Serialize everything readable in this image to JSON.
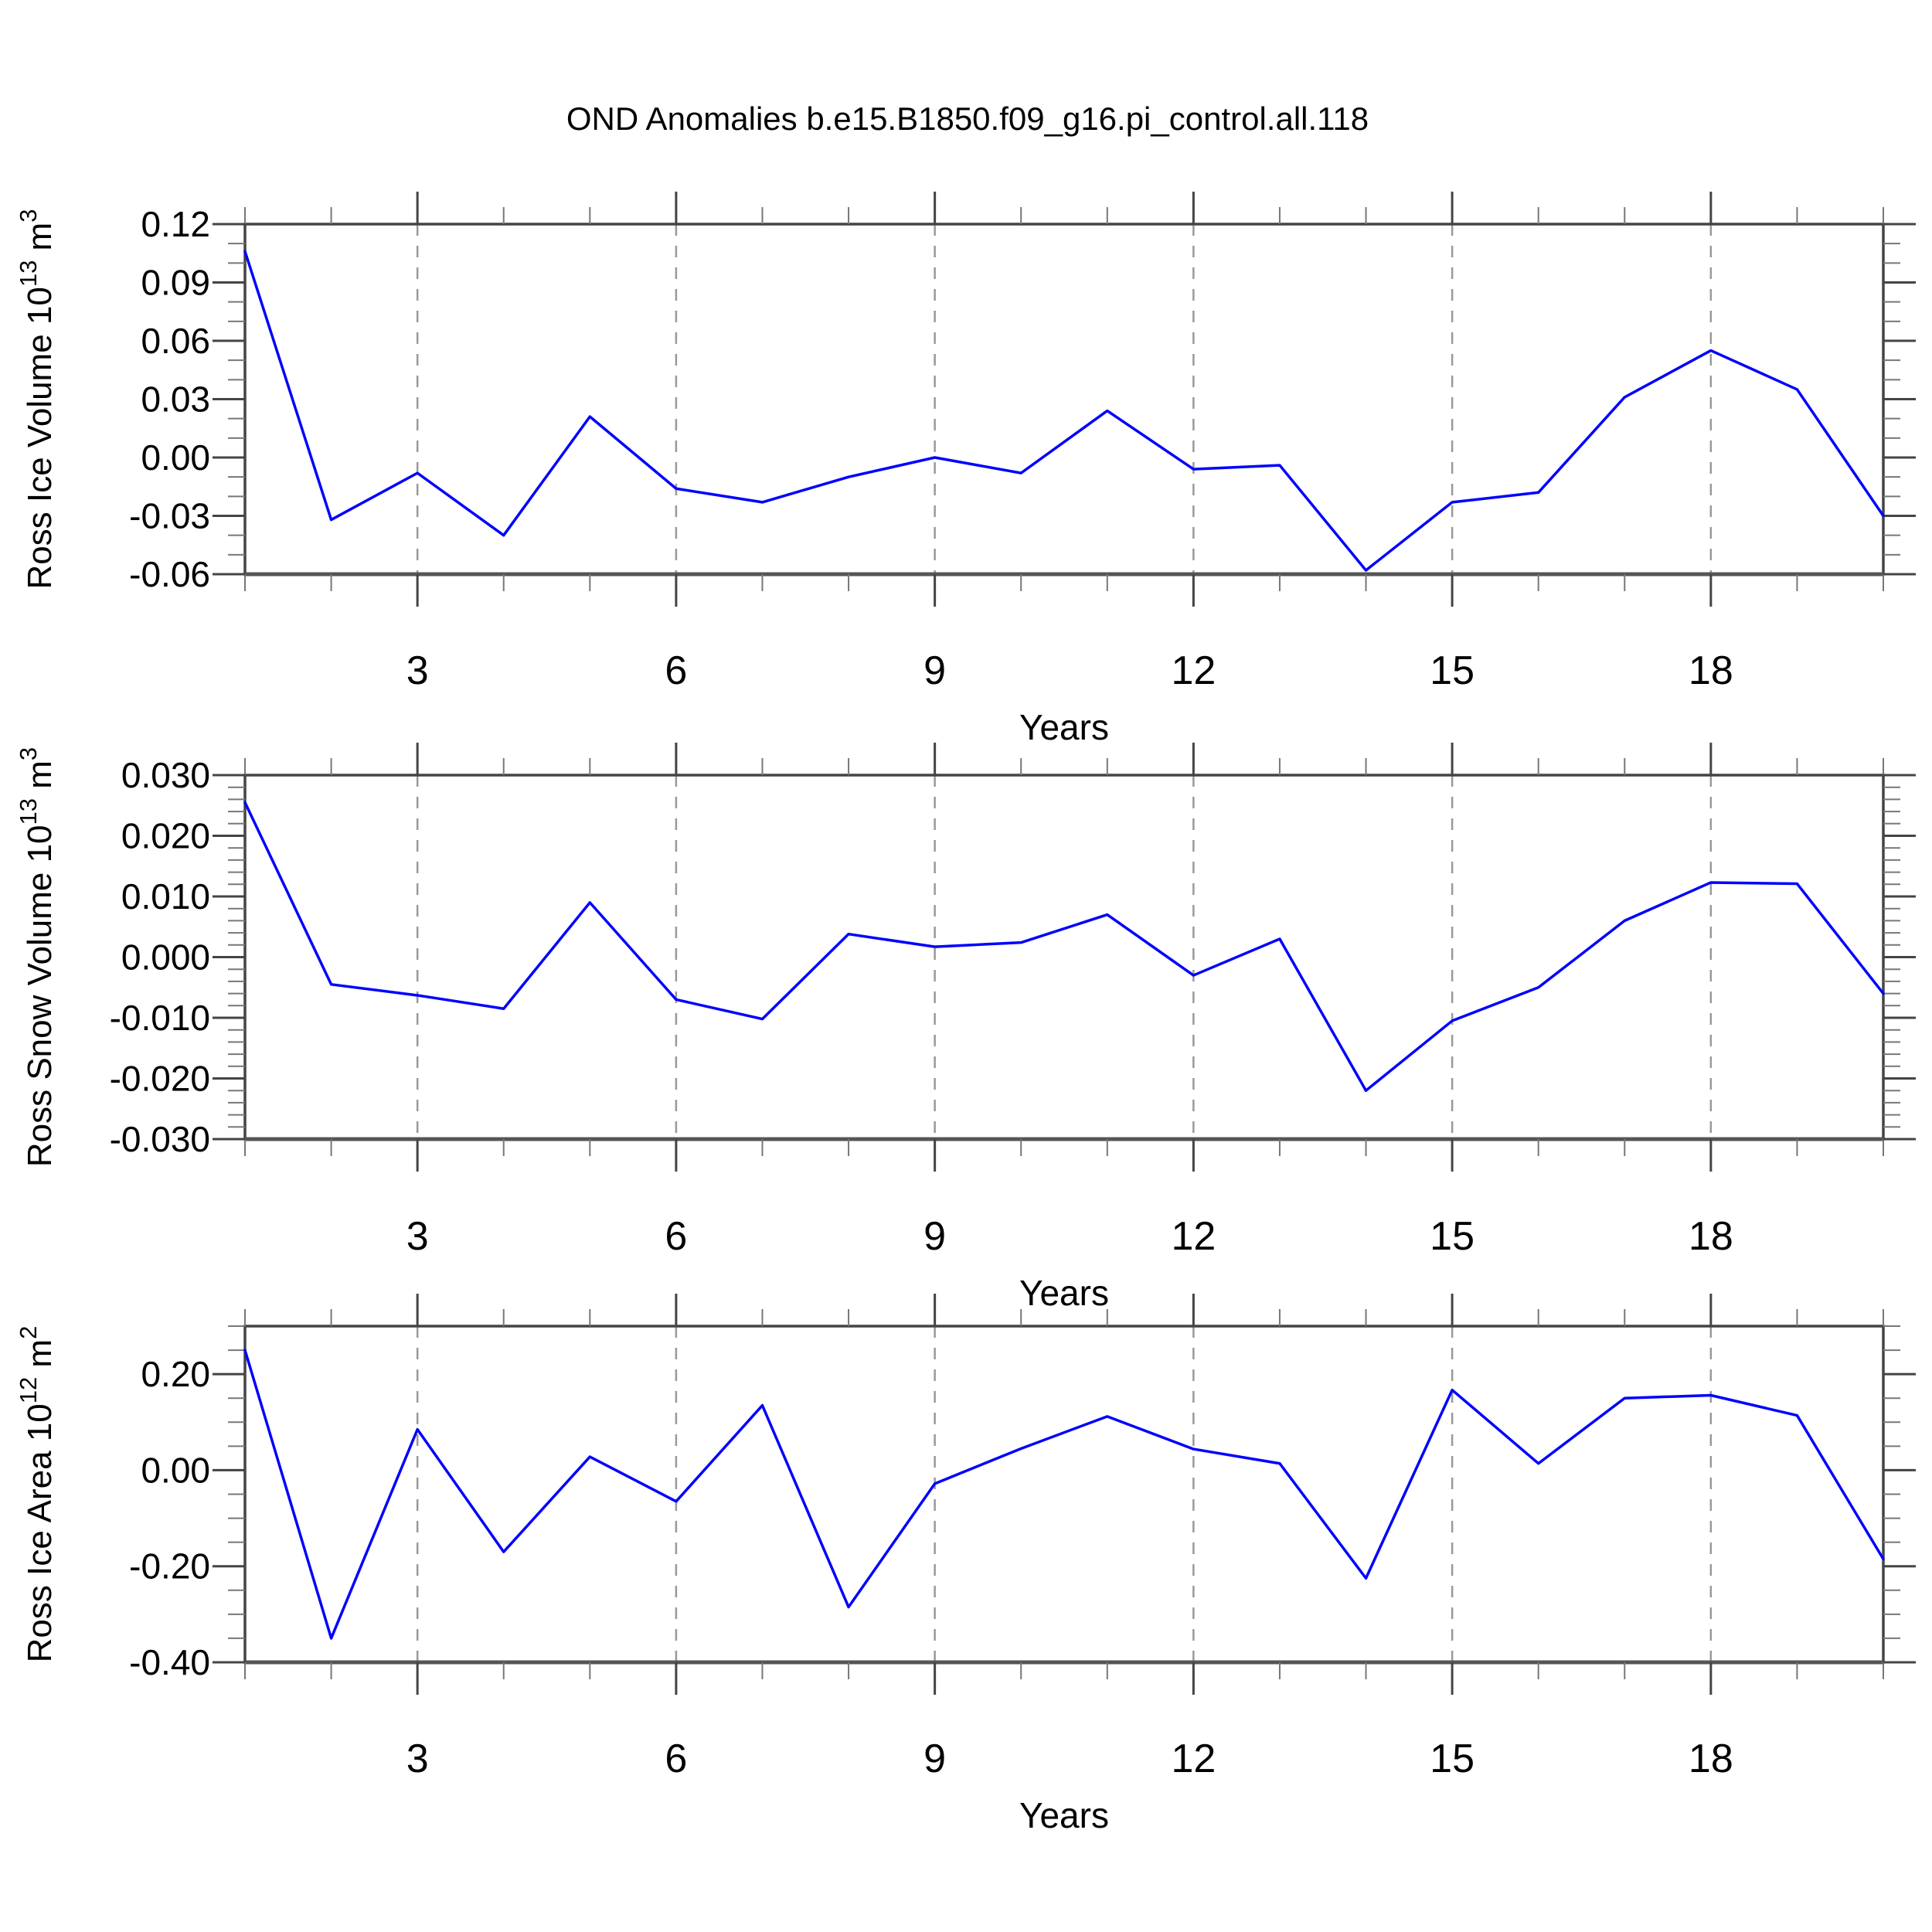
{
  "title": "OND Anomalies b.e15.B1850.f09_g16.pi_control.all.118",
  "line_color": "#0000ff",
  "grid_color": "#999999",
  "axis_color": "#444444",
  "chart_data": [
    {
      "type": "line",
      "name": "ross-ice-volume",
      "xlabel": "Years",
      "ylabel": "Ross Ice Volume 10^13 m^3",
      "ylabel_parts": [
        {
          "text": "Ross Ice Volume 10",
          "sup": false
        },
        {
          "text": "13",
          "sup": true
        },
        {
          "text": " m",
          "sup": false
        },
        {
          "text": "3",
          "sup": true
        }
      ],
      "x": [
        1,
        2,
        3,
        4,
        5,
        6,
        7,
        8,
        9,
        10,
        11,
        12,
        13,
        14,
        15,
        16,
        17,
        18,
        19,
        20
      ],
      "values": [
        0.106,
        -0.032,
        -0.008,
        -0.04,
        0.021,
        -0.016,
        -0.023,
        -0.01,
        0.0,
        -0.008,
        0.024,
        -0.006,
        -0.004,
        -0.058,
        -0.023,
        -0.018,
        0.031,
        0.055,
        0.035,
        -0.03
      ],
      "xlim": [
        1,
        20
      ],
      "ylim": [
        -0.06,
        0.12
      ],
      "xticks_major": [
        3,
        6,
        9,
        12,
        15,
        18
      ],
      "xtick_labels": [
        "3",
        "6",
        "9",
        "12",
        "15",
        "18"
      ],
      "x_minor_step": 1,
      "yticks": [
        {
          "value": 0.12,
          "label": "0.12"
        },
        {
          "value": 0.09,
          "label": "0.09"
        },
        {
          "value": 0.06,
          "label": "0.06"
        },
        {
          "value": 0.03,
          "label": "0.03"
        },
        {
          "value": 0.0,
          "label": "0.00"
        },
        {
          "value": -0.03,
          "label": "-0.03"
        },
        {
          "value": -0.06,
          "label": "-0.06"
        }
      ],
      "y_minor_step": 0.01,
      "grid": "vertical-dashed",
      "legend": "none"
    },
    {
      "type": "line",
      "name": "ross-snow-volume",
      "xlabel": "Years",
      "ylabel": "Ross Snow Volume 10^13 m^3",
      "ylabel_parts": [
        {
          "text": "Ross Snow Volume 10",
          "sup": false
        },
        {
          "text": "13",
          "sup": true
        },
        {
          "text": " m",
          "sup": false
        },
        {
          "text": "3",
          "sup": true
        }
      ],
      "x": [
        1,
        2,
        3,
        4,
        5,
        6,
        7,
        8,
        9,
        10,
        11,
        12,
        13,
        14,
        15,
        16,
        17,
        18,
        19,
        20
      ],
      "values": [
        0.0255,
        -0.0045,
        -0.0063,
        -0.0085,
        0.009,
        -0.007,
        -0.0102,
        0.0038,
        0.0017,
        0.0024,
        0.007,
        -0.003,
        0.003,
        -0.022,
        -0.0105,
        -0.005,
        0.006,
        0.0123,
        0.0121,
        -0.006
      ],
      "xlim": [
        1,
        20
      ],
      "ylim": [
        -0.03,
        0.03
      ],
      "xticks_major": [
        3,
        6,
        9,
        12,
        15,
        18
      ],
      "xtick_labels": [
        "3",
        "6",
        "9",
        "12",
        "15",
        "18"
      ],
      "x_minor_step": 1,
      "yticks": [
        {
          "value": 0.03,
          "label": "0.030"
        },
        {
          "value": 0.02,
          "label": "0.020"
        },
        {
          "value": 0.01,
          "label": "0.010"
        },
        {
          "value": 0.0,
          "label": "0.000"
        },
        {
          "value": -0.01,
          "label": "-0.010"
        },
        {
          "value": -0.02,
          "label": "-0.020"
        },
        {
          "value": -0.03,
          "label": "-0.030"
        }
      ],
      "y_minor_step": 0.002,
      "grid": "vertical-dashed",
      "legend": "none"
    },
    {
      "type": "line",
      "name": "ross-ice-area",
      "xlabel": "Years",
      "ylabel": "Ross Ice Area 10^12 m^2",
      "ylabel_parts": [
        {
          "text": "Ross Ice Area 10",
          "sup": false
        },
        {
          "text": "12",
          "sup": true
        },
        {
          "text": " m",
          "sup": false
        },
        {
          "text": "2",
          "sup": true
        }
      ],
      "x": [
        1,
        2,
        3,
        4,
        5,
        6,
        7,
        8,
        9,
        10,
        11,
        12,
        13,
        14,
        15,
        16,
        17,
        18,
        19,
        20
      ],
      "values": [
        0.25,
        -0.35,
        0.085,
        -0.17,
        0.028,
        -0.065,
        0.135,
        -0.285,
        -0.028,
        0.045,
        0.112,
        0.044,
        0.014,
        -0.225,
        0.167,
        0.014,
        0.15,
        0.156,
        0.114,
        -0.185
      ],
      "xlim": [
        1,
        20
      ],
      "ylim": [
        -0.4,
        0.3
      ],
      "xticks_major": [
        3,
        6,
        9,
        12,
        15,
        18
      ],
      "xtick_labels": [
        "3",
        "6",
        "9",
        "12",
        "15",
        "18"
      ],
      "x_minor_step": 1,
      "yticks": [
        {
          "value": 0.2,
          "label": "0.20"
        },
        {
          "value": 0.0,
          "label": "0.00"
        },
        {
          "value": -0.2,
          "label": "-0.20"
        },
        {
          "value": -0.4,
          "label": "-0.40"
        }
      ],
      "y_minor_step": 0.05,
      "grid": "vertical-dashed",
      "legend": "none"
    }
  ]
}
